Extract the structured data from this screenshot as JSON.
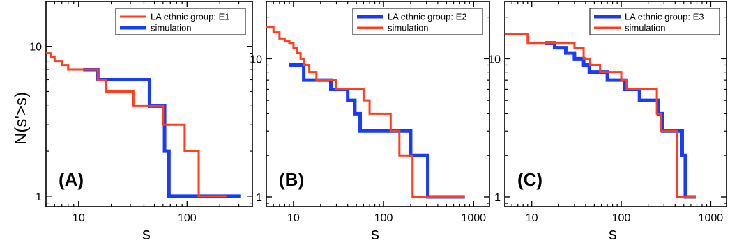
{
  "figure": {
    "ylabel": "N(s'>s)"
  },
  "chart_data": [
    {
      "type": "line",
      "panel_label": "(A)",
      "xlabel": "s",
      "ylabel": "N(s'>s)",
      "xscale": "log",
      "yscale": "log",
      "xlim": [
        5,
        400
      ],
      "ylim": [
        0.85,
        20
      ],
      "xticks": [
        10,
        100
      ],
      "xtick_labels": [
        "10",
        "100"
      ],
      "yticks": [
        1,
        10
      ],
      "ytick_labels": [
        "1",
        "10"
      ],
      "legend": {
        "position": "top-right",
        "entries": [
          "LA ethnic group: E1",
          "simulation"
        ]
      },
      "series": [
        {
          "name": "LA ethnic group: E1",
          "color": "#ff3d1f",
          "width": 3,
          "style": "step",
          "x": [
            5,
            5.5,
            6,
            7,
            8,
            10,
            15,
            18,
            32,
            44,
            60,
            95,
            128,
            230
          ],
          "y": [
            9,
            8.5,
            8,
            7.5,
            7,
            7,
            6,
            5,
            4,
            4,
            3,
            2,
            1,
            1
          ]
        },
        {
          "name": "simulation",
          "color": "#1a3cf5",
          "width": 5,
          "style": "step",
          "x": [
            11,
            15,
            45,
            62,
            68,
            310
          ],
          "y": [
            7,
            6,
            4,
            2,
            1,
            1
          ]
        }
      ]
    },
    {
      "type": "line",
      "panel_label": "(B)",
      "xlabel": "s",
      "ylabel": "",
      "xscale": "log",
      "yscale": "log",
      "xlim": [
        5,
        1500
      ],
      "ylim": [
        0.85,
        26
      ],
      "xticks": [
        10,
        100,
        1000
      ],
      "xtick_labels": [
        "10",
        "100",
        "1000"
      ],
      "yticks": [
        1,
        10
      ],
      "ytick_labels": [
        "1",
        "10"
      ],
      "legend": {
        "position": "top-right",
        "entries": [
          "LA ethnic group: E2",
          "simulation"
        ]
      },
      "series": [
        {
          "name": "LA ethnic group: E2",
          "color": "#1a3cf5",
          "width": 5,
          "style": "step",
          "x": [
            9,
            13,
            26,
            40,
            48,
            55,
            200,
            310,
            800
          ],
          "y": [
            9,
            7,
            6,
            5,
            4,
            3,
            2,
            1,
            1
          ]
        },
        {
          "name": "simulation",
          "color": "#ff3d1f",
          "width": 3,
          "style": "step",
          "x": [
            5,
            6,
            7,
            8,
            9,
            10,
            11,
            12,
            13,
            15,
            18,
            22,
            30,
            45,
            60,
            70,
            120,
            150,
            210,
            800
          ],
          "y": [
            17,
            15.5,
            14,
            13.5,
            13,
            12,
            11,
            10,
            9,
            8,
            7,
            7,
            6,
            6,
            5,
            4,
            3,
            2,
            1,
            1
          ]
        }
      ]
    },
    {
      "type": "line",
      "panel_label": "(C)",
      "xlabel": "s",
      "ylabel": "",
      "xscale": "log",
      "yscale": "log",
      "xlim": [
        5,
        1500
      ],
      "ylim": [
        0.85,
        26
      ],
      "xticks": [
        10,
        100,
        1000
      ],
      "xtick_labels": [
        "10",
        "100",
        "1000"
      ],
      "yticks": [
        1,
        10
      ],
      "ytick_labels": [
        "1",
        "10"
      ],
      "legend": {
        "position": "top-right",
        "entries": [
          "LA ethnic group: E3",
          "simulation"
        ]
      },
      "series": [
        {
          "name": "LA ethnic group: E3",
          "color": "#1a3cf5",
          "width": 5,
          "style": "step",
          "x": [
            14,
            18,
            24,
            30,
            38,
            44,
            70,
            110,
            160,
            260,
            290,
            480,
            520,
            680
          ],
          "y": [
            13,
            12,
            11,
            10,
            9,
            8,
            7,
            6,
            5,
            4,
            3,
            2,
            1,
            1
          ]
        },
        {
          "name": "simulation",
          "color": "#ff3d1f",
          "width": 3,
          "style": "step",
          "x": [
            5,
            7,
            9,
            12,
            25,
            30,
            38,
            45,
            58,
            100,
            115,
            250,
            280,
            420,
            680
          ],
          "y": [
            15,
            15,
            13,
            13,
            13,
            12,
            10,
            9,
            8,
            7,
            6,
            4,
            3,
            1,
            1
          ]
        }
      ]
    }
  ]
}
